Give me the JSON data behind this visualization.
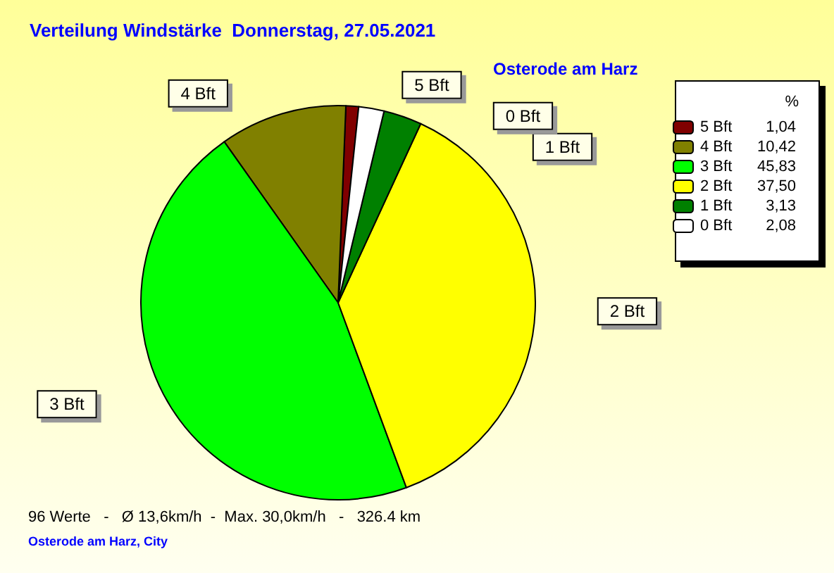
{
  "chart_data": {
    "type": "pie",
    "title": "Verteilung Windstärke  Donnerstag, 27.05.2021",
    "subtitle": "Osterode am Harz",
    "categories": [
      "5 Bft",
      "4 Bft",
      "3 Bft",
      "2 Bft",
      "1 Bft",
      "0 Bft"
    ],
    "values": [
      1.04,
      10.42,
      45.83,
      37.5,
      3.13,
      2.08
    ],
    "value_labels": [
      "1,04",
      "10,42",
      "45,83",
      "37,50",
      "3,13",
      "2,08"
    ],
    "colors": [
      "#800000",
      "#808000",
      "#00ff00",
      "#ffff00",
      "#008000",
      "#ffffff"
    ],
    "legend": "right",
    "legend_title": "%",
    "annotations": [
      "96 Werte   -   Ø 13,6km/h  -  Max. 30,0km/h   -   326.4 km",
      "Osterode am Harz, City"
    ]
  }
}
